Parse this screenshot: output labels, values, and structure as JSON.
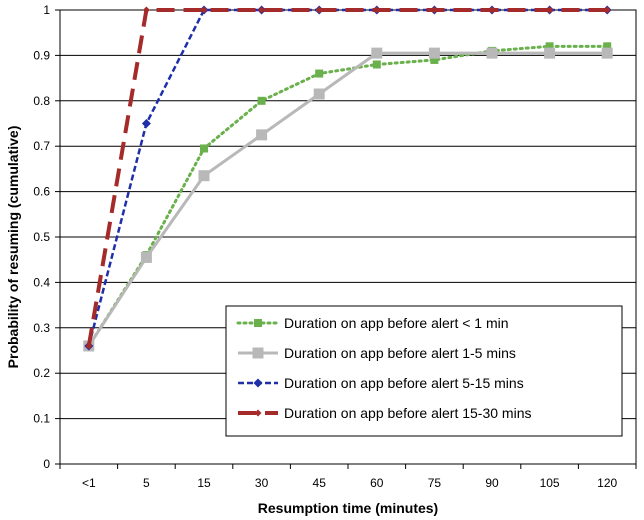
{
  "chart_data": {
    "type": "line",
    "xlabel": "Resumption time (minutes)",
    "ylabel": "Probability of resuming (cumulative)",
    "categories": [
      "<1",
      "5",
      "15",
      "30",
      "45",
      "60",
      "75",
      "90",
      "105",
      "120"
    ],
    "ylim": [
      0,
      1
    ],
    "yticks": [
      "0",
      "0.1",
      "0.2",
      "0.3",
      "0.4",
      "0.5",
      "0.6",
      "0.7",
      "0.8",
      "0.9",
      "1"
    ],
    "grid": "horizontal",
    "legend_position": "bottom-right",
    "series": [
      {
        "name": "Duration on app before alert < 1 min",
        "values": [
          0.26,
          0.46,
          0.695,
          0.8,
          0.86,
          0.88,
          0.89,
          0.91,
          0.92,
          0.92
        ],
        "color": "#6ab04c",
        "style": "dotted",
        "marker": "square"
      },
      {
        "name": "Duration on app before alert 1-5 mins",
        "values": [
          0.26,
          0.455,
          0.635,
          0.725,
          0.815,
          0.905,
          0.905,
          0.905,
          0.905,
          0.905
        ],
        "color": "#b8b8b8",
        "style": "solid",
        "marker": "square"
      },
      {
        "name": "Duration on app before alert 5-15 mins",
        "values": [
          0.26,
          0.75,
          1.0,
          1.0,
          1.0,
          1.0,
          1.0,
          1.0,
          1.0,
          1.0
        ],
        "color": "#1f2fa8",
        "style": "dashed",
        "marker": "diamond"
      },
      {
        "name": "Duration on app before alert 15-30 mins",
        "values": [
          0.26,
          1.0,
          1.0,
          1.0,
          1.0,
          1.0,
          1.0,
          1.0,
          1.0,
          1.0
        ],
        "color": "#a52a2a",
        "style": "long-dash",
        "marker": "diamond"
      }
    ]
  }
}
